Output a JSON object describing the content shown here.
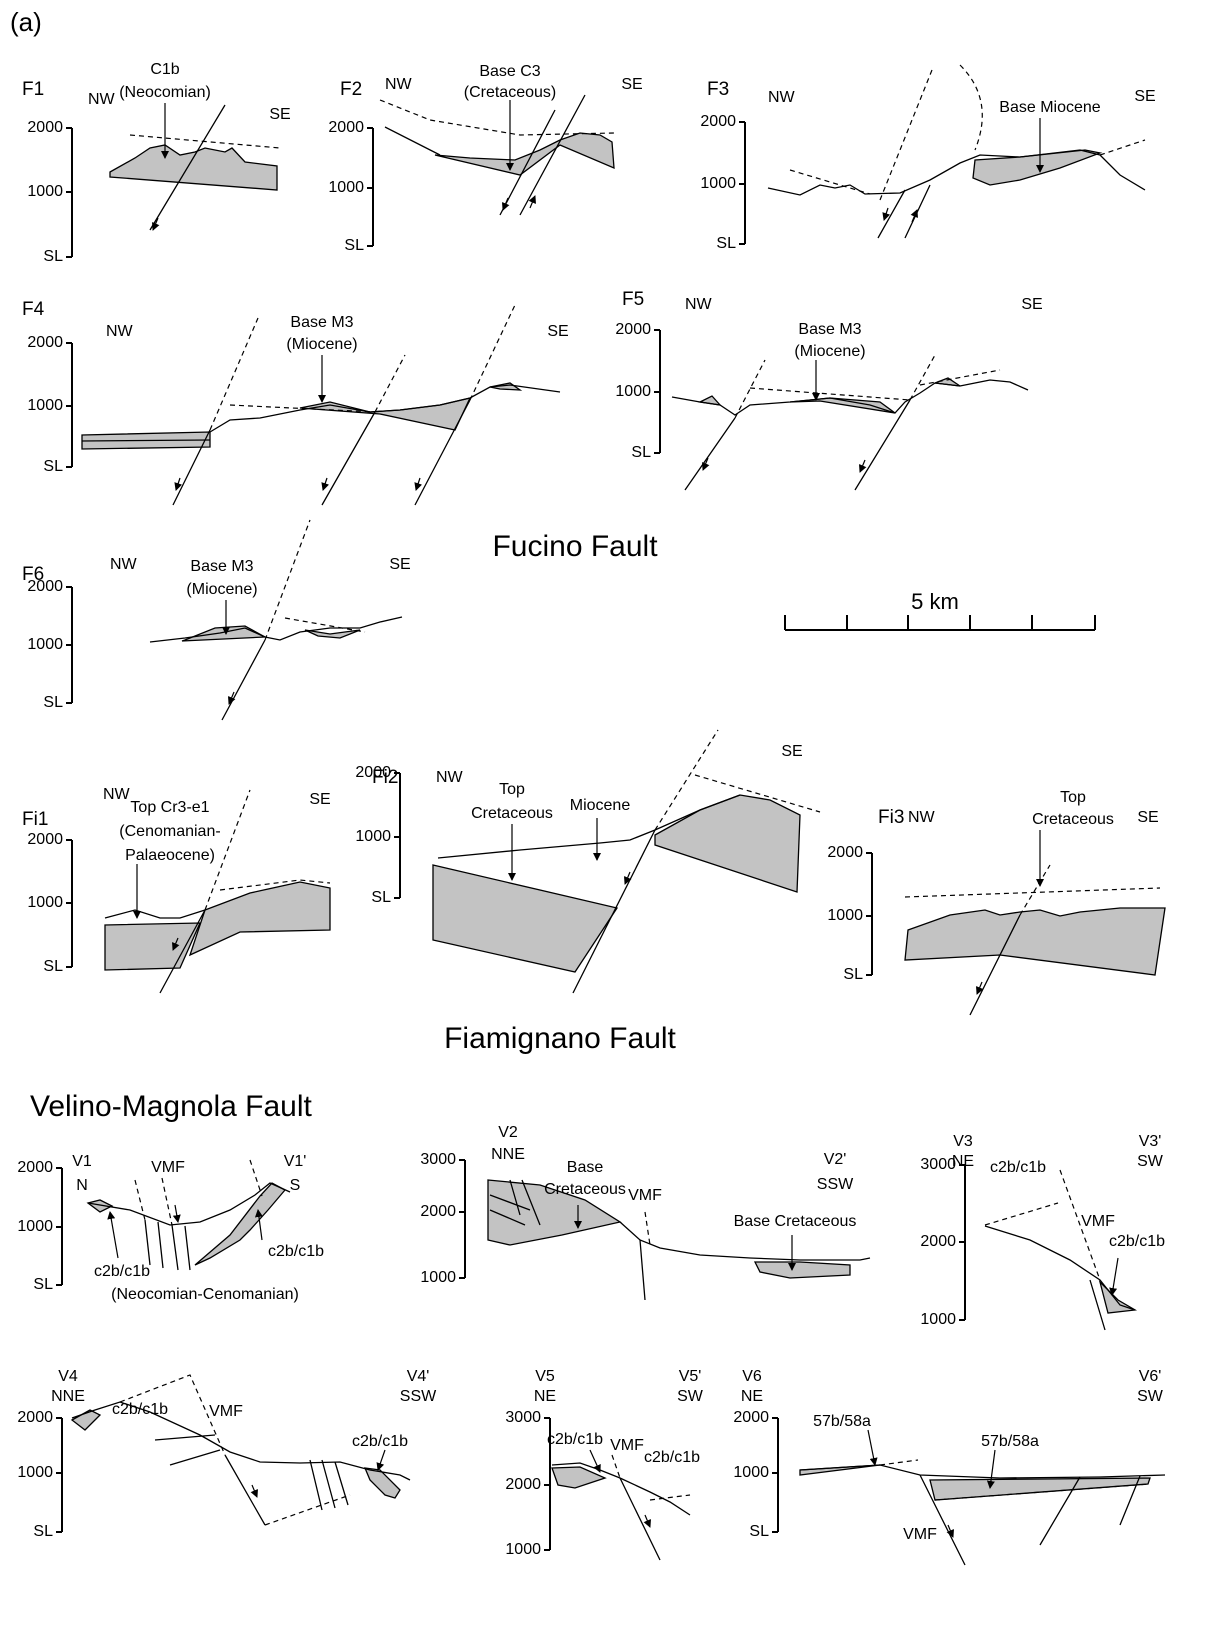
{
  "label": "(a)",
  "sections": {
    "fucino": "Fucino Fault",
    "fiamignano": "Fiamignano Fault",
    "velino": "Velino-Magnola Fault"
  },
  "scale_bar": "5 km",
  "panels": [
    {
      "id": "F1",
      "left": "NW",
      "right": "SE",
      "ticks": [
        "2000",
        "1000",
        "SL"
      ],
      "notes": [
        "C1b",
        "(Neocomian)"
      ]
    },
    {
      "id": "F2",
      "left": "NW",
      "right": "SE",
      "ticks": [
        "2000",
        "1000",
        "SL"
      ],
      "notes": [
        "Base C3",
        "(Cretaceous)"
      ]
    },
    {
      "id": "F3",
      "left": "NW",
      "right": "SE",
      "ticks": [
        "2000",
        "1000",
        "SL"
      ],
      "notes": [
        "Base Miocene"
      ]
    },
    {
      "id": "F4",
      "left": "NW",
      "right": "SE",
      "ticks": [
        "2000",
        "1000",
        "SL"
      ],
      "notes": [
        "Base M3",
        "(Miocene)"
      ]
    },
    {
      "id": "F5",
      "left": "NW",
      "right": "SE",
      "ticks": [
        "2000",
        "1000",
        "SL"
      ],
      "notes": [
        "Base M3",
        "(Miocene)"
      ]
    },
    {
      "id": "F6",
      "left": "NW",
      "right": "SE",
      "ticks": [
        "2000",
        "1000",
        "SL"
      ],
      "notes": [
        "Base M3",
        "(Miocene)"
      ]
    },
    {
      "id": "Fi1",
      "left": "NW",
      "right": "SE",
      "ticks": [
        "2000",
        "1000",
        "SL"
      ],
      "notes": [
        "Top Cr3-e1",
        "(Cenomanian-",
        "Palaeocene)"
      ]
    },
    {
      "id": "Fi2",
      "left": "NW",
      "right": "SE",
      "ticks": [
        "2000",
        "1000",
        "SL"
      ],
      "notes": [
        "Top",
        "Cretaceous",
        "Miocene"
      ]
    },
    {
      "id": "Fi3",
      "left": "NW",
      "right": "SE",
      "ticks": [
        "2000",
        "1000",
        "SL"
      ],
      "notes": [
        "Top",
        "Cretaceous"
      ]
    },
    {
      "id": "V1",
      "left": "N",
      "id_right": "V1'",
      "right": "S",
      "ticks": [
        "2000",
        "1000",
        "SL"
      ],
      "notes": [
        "VMF",
        "c2b/c1b",
        "(Neocomian-Cenomanian)",
        "c2b/c1b"
      ]
    },
    {
      "id": "V2",
      "left": "NNE",
      "id_right": "V2'",
      "right": "SSW",
      "ticks": [
        "3000",
        "2000",
        "1000"
      ],
      "notes": [
        "Base",
        "Cretaceous",
        "VMF",
        "Base Cretaceous"
      ]
    },
    {
      "id": "V3",
      "left": "NE",
      "id_right": "V3'",
      "right": "SW",
      "ticks": [
        "3000",
        "2000",
        "1000"
      ],
      "notes": [
        "c2b/c1b",
        "VMF",
        "c2b/c1b"
      ]
    },
    {
      "id": "V4",
      "left": "NNE",
      "id_right": "V4'",
      "right": "SSW",
      "ticks": [
        "2000",
        "1000",
        "SL"
      ],
      "notes": [
        "c2b/c1b",
        "VMF",
        "c2b/c1b"
      ]
    },
    {
      "id": "V5",
      "left": "NE",
      "id_right": "V5'",
      "right": "SW",
      "ticks": [
        "3000",
        "2000",
        "1000"
      ],
      "notes": [
        "c2b/c1b",
        "VMF",
        "c2b/c1b"
      ]
    },
    {
      "id": "V6",
      "left": "NE",
      "id_right": "V6'",
      "right": "SW",
      "ticks": [
        "2000",
        "1000",
        "SL"
      ],
      "notes": [
        "57b/58a",
        "57b/58a",
        "VMF"
      ]
    }
  ]
}
